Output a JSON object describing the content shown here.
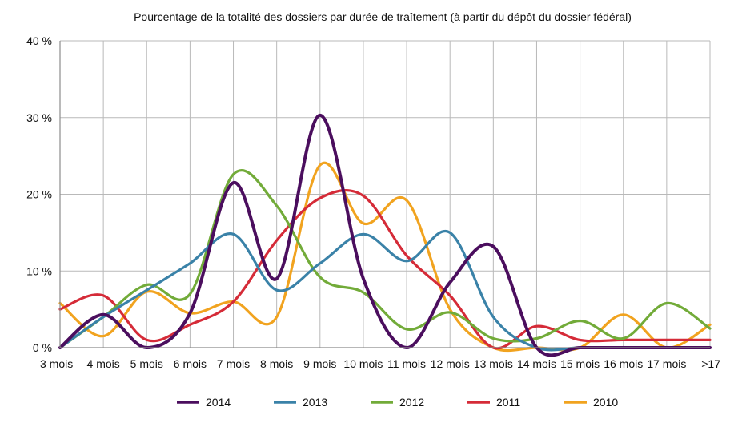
{
  "chart_data": {
    "type": "line",
    "title": "Pourcentage de la totalité des dossiers par durée de traîtement (à partir du dépôt du dossier fédéral)",
    "categories": [
      "3 mois",
      "4 mois",
      "5 mois",
      "6 mois",
      "7 mois",
      "8 mois",
      "9 mois",
      "10 mois",
      "11 mois",
      "12 mois",
      "13 mois",
      "14 mois",
      "15 mois",
      "16 mois",
      "17 mois",
      ">17"
    ],
    "ylim": [
      0,
      40
    ],
    "yticks": [
      0,
      10,
      20,
      30,
      40
    ],
    "ytick_labels": [
      "0 %",
      "10 %",
      "20 %",
      "30 %",
      "40 %"
    ],
    "grid": true,
    "legend_position": "bottom",
    "series": [
      {
        "name": "2014",
        "color": "#4b0e5e",
        "values": [
          0,
          4.3,
          0,
          4.5,
          21.5,
          9,
          30.3,
          9,
          0,
          8.5,
          13.2,
          0,
          0,
          0,
          0,
          0
        ]
      },
      {
        "name": "2013",
        "color": "#3a82a8",
        "values": [
          0,
          4,
          7.5,
          11,
          14.8,
          7.5,
          11,
          14.8,
          11.3,
          15,
          4,
          0,
          0,
          0,
          0,
          0
        ]
      },
      {
        "name": "2012",
        "color": "#72ab39",
        "values": [
          0,
          4,
          8.2,
          7,
          22.6,
          18.5,
          9.2,
          7.2,
          2.4,
          4.6,
          1.2,
          1.2,
          3.5,
          1.2,
          5.8,
          2.5
        ]
      },
      {
        "name": "2011",
        "color": "#d52b38",
        "values": [
          5,
          6.8,
          1,
          3,
          6,
          14,
          19.5,
          19.8,
          12,
          6.8,
          0,
          2.8,
          1,
          1,
          1,
          1
        ]
      },
      {
        "name": "2010",
        "color": "#f1a31f",
        "values": [
          5.8,
          1.5,
          7.3,
          4.5,
          6,
          4,
          23.8,
          16.2,
          19.2,
          5,
          0,
          0,
          0,
          4.3,
          0,
          3
        ]
      }
    ]
  }
}
